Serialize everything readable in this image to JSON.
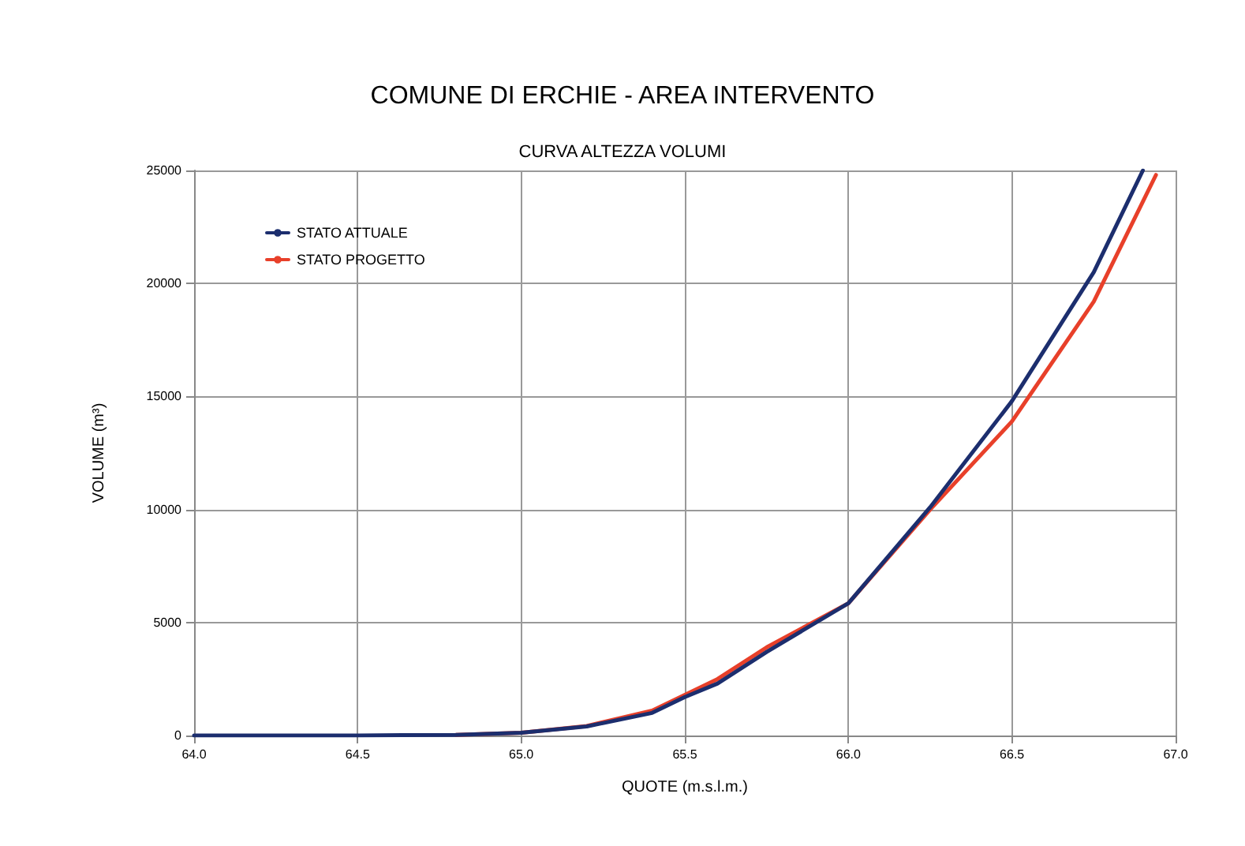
{
  "chart_data": {
    "type": "line",
    "title": "COMUNE DI ERCHIE - AREA INTERVENTO",
    "subtitle": "CURVA ALTEZZA VOLUMI",
    "xlabel": "QUOTE (m.s.l.m.)",
    "ylabel": "VOLUME (m³)",
    "series": [
      {
        "name": "STATO ATTUALE",
        "color": "#1c2e6e",
        "x": [
          64.0,
          64.5,
          64.8,
          65.0,
          65.2,
          65.4,
          65.5,
          65.6,
          65.75,
          66.0,
          66.25,
          66.5,
          66.75,
          66.9
        ],
        "values": [
          0,
          0,
          30,
          120,
          400,
          1000,
          1700,
          2300,
          3700,
          5850,
          10100,
          14800,
          20500,
          25000
        ]
      },
      {
        "name": "STATO PROGETTO",
        "color": "#e8402a",
        "x": [
          64.8,
          65.0,
          65.2,
          65.4,
          65.5,
          65.6,
          65.75,
          66.0,
          66.25,
          66.5,
          66.75,
          66.94
        ],
        "values": [
          30,
          120,
          420,
          1100,
          1800,
          2500,
          3900,
          5850,
          10000,
          13900,
          19200,
          24800
        ]
      }
    ],
    "xlim": [
      64.0,
      67.0
    ],
    "xticks": [
      {
        "value": 64,
        "label": "64.0"
      },
      64.5,
      {
        "value": 65,
        "label": "65.0"
      },
      65.5,
      {
        "value": 66,
        "label": "66.0"
      },
      66.5,
      {
        "value": 67,
        "label": "67.0"
      }
    ],
    "ylim": [
      0,
      25000
    ],
    "yticks": [
      0,
      5000,
      10000,
      15000,
      20000,
      25000
    ],
    "grid": true,
    "legend": "top left",
    "marker": "none",
    "line_style": "solid"
  }
}
